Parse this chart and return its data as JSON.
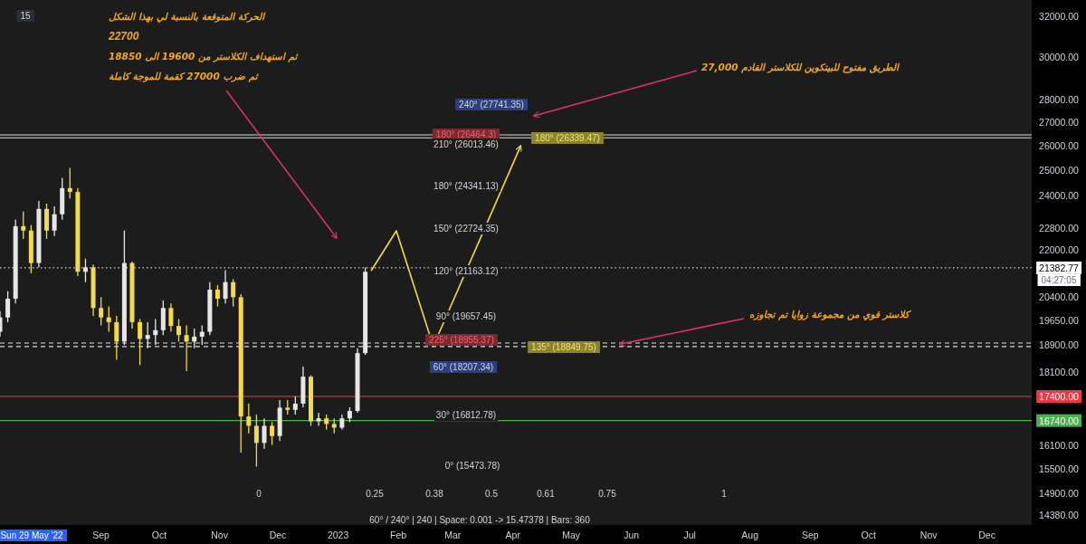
{
  "chart_data": {
    "type": "candlestick",
    "x": [
      "2022-07-11",
      "2022-07-15",
      "2022-07-19",
      "2022-07-23",
      "2022-07-27",
      "2022-07-31",
      "2022-08-04",
      "2022-08-08",
      "2022-08-12",
      "2022-08-16",
      "2022-08-20",
      "2022-08-24",
      "2022-08-28",
      "2022-09-01",
      "2022-09-05",
      "2022-09-09",
      "2022-09-13",
      "2022-09-17",
      "2022-09-21",
      "2022-09-25",
      "2022-09-29",
      "2022-10-03",
      "2022-10-07",
      "2022-10-11",
      "2022-10-15",
      "2022-10-19",
      "2022-10-23",
      "2022-10-27",
      "2022-10-31",
      "2022-11-04",
      "2022-11-08",
      "2022-11-12",
      "2022-11-16",
      "2022-11-20",
      "2022-11-24",
      "2022-11-28",
      "2022-12-02",
      "2022-12-06",
      "2022-12-10",
      "2022-12-14",
      "2022-12-18",
      "2022-12-22",
      "2022-12-26",
      "2022-12-30",
      "2023-01-03",
      "2023-01-07",
      "2023-01-11",
      "2023-01-15"
    ],
    "ohlc": [
      [
        19300,
        19950,
        19150,
        19750
      ],
      [
        19750,
        20600,
        19600,
        20350
      ],
      [
        20350,
        23100,
        20200,
        22860
      ],
      [
        22860,
        23400,
        22400,
        22700
      ],
      [
        22700,
        22900,
        21200,
        21550
      ],
      [
        21550,
        23800,
        21400,
        23500
      ],
      [
        23500,
        23700,
        22400,
        22700
      ],
      [
        22700,
        23600,
        22500,
        23300
      ],
      [
        23300,
        24700,
        23100,
        24300
      ],
      [
        24300,
        25100,
        23900,
        24150
      ],
      [
        24150,
        24300,
        21100,
        21250
      ],
      [
        21250,
        21700,
        20900,
        21400
      ],
      [
        21400,
        21500,
        19800,
        20050
      ],
      [
        20050,
        20400,
        19500,
        19750
      ],
      [
        19750,
        20100,
        19300,
        19600
      ],
      [
        19600,
        19800,
        18450,
        19000
      ],
      [
        19000,
        22700,
        18900,
        21550
      ],
      [
        21550,
        21600,
        19400,
        19600
      ],
      [
        19600,
        19700,
        18300,
        19080
      ],
      [
        19080,
        19600,
        18800,
        19200
      ],
      [
        19200,
        19700,
        18900,
        19350
      ],
      [
        19350,
        20300,
        19200,
        20050
      ],
      [
        20050,
        20200,
        19300,
        19480
      ],
      [
        19480,
        19700,
        19000,
        19200
      ],
      [
        19200,
        19500,
        18120,
        19000
      ],
      [
        19000,
        19400,
        18800,
        19150
      ],
      [
        19150,
        19500,
        18900,
        19300
      ],
      [
        19300,
        20900,
        19200,
        20650
      ],
      [
        20650,
        20800,
        20100,
        20350
      ],
      [
        20350,
        21300,
        20200,
        20900
      ],
      [
        20900,
        21000,
        20100,
        20400
      ],
      [
        20400,
        20500,
        15900,
        16850
      ],
      [
        16850,
        17200,
        16400,
        16600
      ],
      [
        16600,
        16900,
        15550,
        16150
      ],
      [
        16150,
        16800,
        16000,
        16600
      ],
      [
        16600,
        16700,
        16100,
        16330
      ],
      [
        16330,
        17300,
        16200,
        17090
      ],
      [
        17090,
        17300,
        16900,
        17030
      ],
      [
        17030,
        17400,
        16900,
        17200
      ],
      [
        17200,
        18250,
        17100,
        17960
      ],
      [
        17960,
        18000,
        16600,
        16720
      ],
      [
        16720,
        16950,
        16600,
        16800
      ],
      [
        16800,
        16900,
        16500,
        16650
      ],
      [
        16650,
        16800,
        16400,
        16550
      ],
      [
        16550,
        16900,
        16500,
        16800
      ],
      [
        16800,
        17100,
        16700,
        17000
      ],
      [
        17000,
        18800,
        16950,
        18650
      ],
      [
        18650,
        21400,
        18600,
        21250
      ]
    ],
    "colors": [
      "#e6e6e6",
      "#e6e6e6",
      "#e6e6e6",
      "#f2d94e",
      "#f2d94e",
      "#e6e6e6",
      "#f2d94e",
      "#e6e6e6",
      "#e6e6e6",
      "#f2d94e",
      "#f2d94e",
      "#e6e6e6",
      "#f2d94e",
      "#f2d94e",
      "#f2d94e",
      "#f2d94e",
      "#e6e6e6",
      "#f2d94e",
      "#f2d94e",
      "#e6e6e6",
      "#e6e6e6",
      "#e6e6e6",
      "#f2d94e",
      "#f2d94e",
      "#f2d94e",
      "#e6e6e6",
      "#e6e6e6",
      "#e6e6e6",
      "#f2d94e",
      "#e6e6e6",
      "#f2d94e",
      "#f2d94e",
      "#f2d94e",
      "#f2d94e",
      "#e6e6e6",
      "#f2d94e",
      "#e6e6e6",
      "#f2d94e",
      "#e6e6e6",
      "#e6e6e6",
      "#f2d94e",
      "#e6e6e6",
      "#f2d94e",
      "#f2d94e",
      "#e6e6e6",
      "#e6e6e6",
      "#e6e6e6",
      "#e6e6e6"
    ],
    "series": [
      {
        "type": "line",
        "color": "#f2d94e",
        "x": [
          "2023-01-18",
          "2023-01-31",
          "2023-02-19",
          "2023-04-05"
        ],
        "values": [
          21280,
          22690,
          18860,
          26000
        ]
      }
    ],
    "log": "y",
    "xlim": [
      "2022-07-11",
      "2023-12-24"
    ],
    "xticks": [
      {
        "value": "2022-09-01",
        "label": "Sep"
      },
      {
        "value": "2022-10-01",
        "label": "Oct"
      },
      {
        "value": "2022-11-01",
        "label": "Nov"
      },
      {
        "value": "2022-12-01",
        "label": "Dec"
      },
      {
        "value": "2023-01-01",
        "label": "2023"
      },
      {
        "value": "2023-02-01",
        "label": "Feb"
      },
      {
        "value": "2023-03-01",
        "label": "Mar"
      },
      {
        "value": "2023-04-01",
        "label": "Apr"
      },
      {
        "value": "2023-05-01",
        "label": "May"
      },
      {
        "value": "2023-06-01",
        "label": "Jun"
      },
      {
        "value": "2023-07-01",
        "label": "Jul"
      },
      {
        "value": "2023-08-01",
        "label": "Aug"
      },
      {
        "value": "2023-09-01",
        "label": "Sep"
      },
      {
        "value": "2023-10-01",
        "label": "Oct"
      },
      {
        "value": "2023-11-01",
        "label": "Nov"
      },
      {
        "value": "2023-12-01",
        "label": "Dec"
      }
    ],
    "ylim": [
      14160,
      32850
    ],
    "yticks": [
      {
        "value": 32000,
        "label": "32000.00"
      },
      {
        "value": 30000,
        "label": "30000.00"
      },
      {
        "value": 28000,
        "label": "28000.00"
      },
      {
        "value": 27000,
        "label": "27000.00"
      },
      {
        "value": 26000,
        "label": "26000.00"
      },
      {
        "value": 25000,
        "label": "25000.00"
      },
      {
        "value": 24000,
        "label": "24000.00"
      },
      {
        "value": 22800,
        "label": "22800.00"
      },
      {
        "value": 22000,
        "label": "22000.00"
      },
      {
        "value": 21382.77,
        "label": "21382.77"
      },
      {
        "value": 20400,
        "label": "20400.00"
      },
      {
        "value": 19650,
        "label": "19650.00"
      },
      {
        "value": 18900,
        "label": "18900.00"
      },
      {
        "value": 18100,
        "label": "18100.00"
      },
      {
        "value": 17400,
        "label": "17400.00"
      },
      {
        "value": 16740,
        "label": "16740.00"
      },
      {
        "value": 16100,
        "label": "16100.00"
      },
      {
        "value": 15500,
        "label": "15500.00"
      },
      {
        "value": 14900,
        "label": "14900.00"
      },
      {
        "value": 14380,
        "label": "14380.00"
      }
    ],
    "ref_lines": [
      {
        "axis": "y",
        "value": 26464.3,
        "color": "#d9d9d9",
        "line_style": "solid"
      },
      {
        "axis": "y",
        "value": 26339.47,
        "color": "#d9d9d9",
        "line_style": "solid"
      },
      {
        "axis": "y",
        "value": 21382.77,
        "color": "#d9d9d9",
        "line_style": "dotted"
      },
      {
        "axis": "y",
        "value": 18955.37,
        "color": "#d9d9d9",
        "line_style": "dashed"
      },
      {
        "axis": "y",
        "value": 18849.75,
        "color": "#d9d9d9",
        "line_style": "dashed"
      },
      {
        "axis": "y",
        "value": 17400,
        "color": "#f23645",
        "line_style": "solid"
      },
      {
        "axis": "y",
        "value": 16740,
        "color": "#4caf50",
        "line_style": "solid"
      }
    ],
    "annotations": [
      "الحركة المتوقعة بالنسبة لي بهذا الشكل",
      "22700",
      "ثم استهداف الكلاستر من 19600 الى 18850",
      "ثم ضرب 27000 كقمة للموجة كاملة",
      "الطريق مفتوح للبيتكوين للكلاستر القادم 27,000",
      {
        "text": "كلاستر قوي من مجموعة زوايا  تم تجاوزه",
        "x": "2023-05-26",
        "y": 18920
      },
      "240° (27741.35)",
      "180° (26464.3)",
      "210° (26013.46)",
      "180° (26339.47)",
      "180° (24341.13)",
      "150° (22724.35)",
      "120° (21163.12)",
      "90° (19657.45)",
      "225° (18955.37)",
      "135° (18849.75)",
      "60° (18207.34)",
      "30° (16812.78)",
      "0° (15473.78)",
      "0",
      "0.25",
      "0.38",
      "0.5",
      "0.61",
      "0.75",
      "1",
      "60° / 240° | 240 | Space: 0.001 -> 15.47378 | Bars: 360",
      "15",
      "04:27:05",
      "Sun 29 May '22"
    ]
  }
}
